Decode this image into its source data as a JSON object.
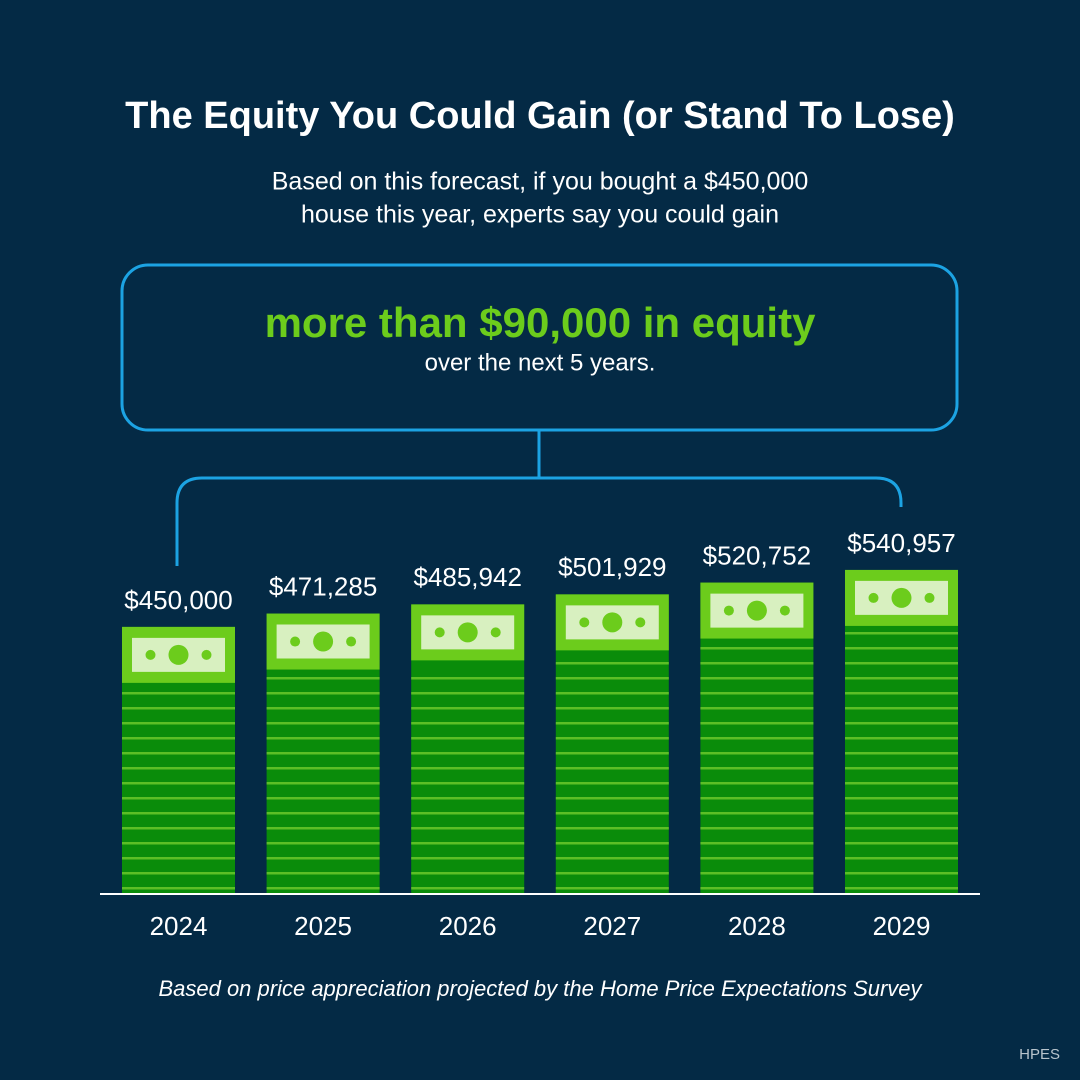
{
  "chart_data": {
    "type": "bar",
    "title": "The Equity You Could Gain (or Stand To Lose)",
    "subtitle": [
      "Based on this forecast, if you bought a $450,000",
      "house this year, experts say you could gain"
    ],
    "callout": {
      "highlight": "more than $90,000 in equity",
      "text": "over the next 5 years."
    },
    "categories": [
      "2024",
      "2025",
      "2026",
      "2027",
      "2028",
      "2029"
    ],
    "values": [
      450000,
      471285,
      485942,
      501929,
      520752,
      540957
    ],
    "value_labels": [
      "$450,000",
      "$471,285",
      "$485,942",
      "$501,929",
      "$520,752",
      "$540,957"
    ],
    "color": "#0a8c0a",
    "ylim": [
      25000,
      560000
    ],
    "note": "Based on price appreciation projected by the Home Price Expectations Survey",
    "source": "HPES"
  }
}
